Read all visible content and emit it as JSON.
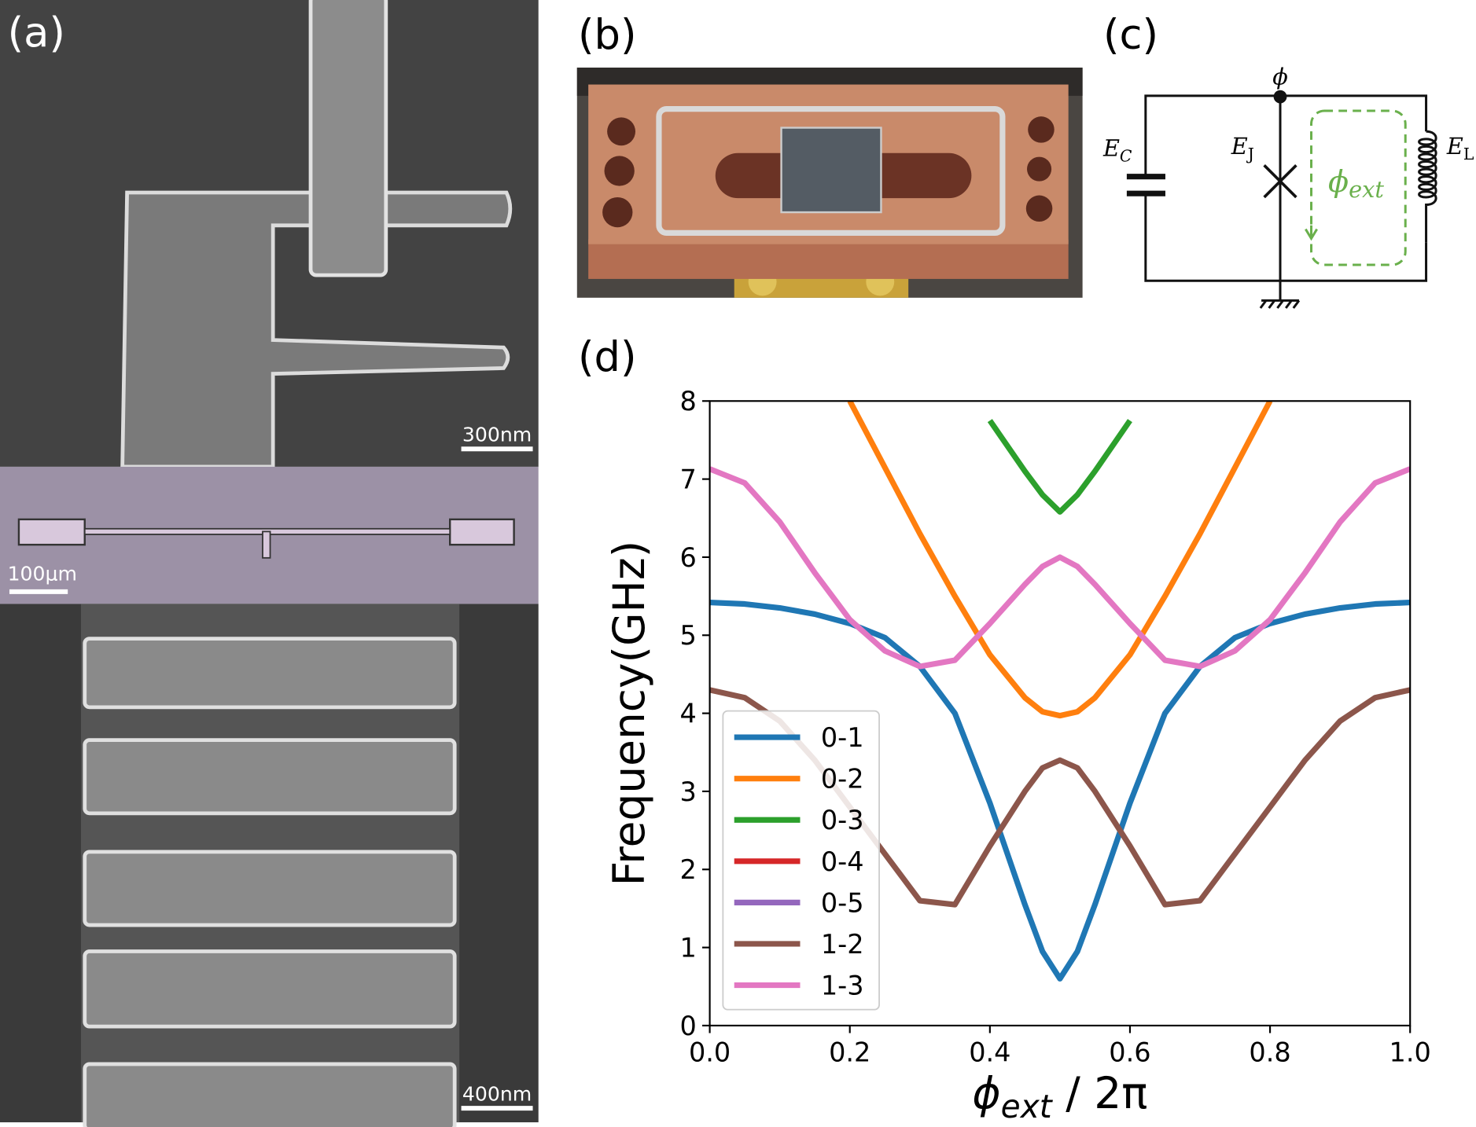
{
  "panels": {
    "a": {
      "label": "(a)",
      "scale_top": "300nm",
      "scale_mid": "100μm",
      "scale_bottom": "400nm"
    },
    "b": {
      "label": "(b)"
    },
    "c": {
      "label": "(c)",
      "node": "ϕ",
      "ec": {
        "main": "E",
        "sub": "C"
      },
      "ej": {
        "main": "E",
        "sub": "J"
      },
      "el": {
        "main": "E",
        "sub": "L"
      },
      "flux": {
        "main": "ϕ",
        "sub": "ext"
      }
    },
    "d": {
      "label": "(d)"
    }
  },
  "chart_data": {
    "type": "line",
    "y_label": "Frequency(GHz)",
    "x_label": {
      "symbol": "ϕ",
      "subscript": "ext",
      "rest": " / 2π"
    },
    "x": [
      0,
      0.05,
      0.1,
      0.15,
      0.2,
      0.25,
      0.3,
      0.35,
      0.4,
      0.45,
      0.475,
      0.5,
      0.525,
      0.55,
      0.6,
      0.65,
      0.7,
      0.75,
      0.8,
      0.85,
      0.9,
      0.95,
      1.0
    ],
    "series": [
      {
        "name": "0-1",
        "color": "#1f77b4",
        "values": [
          5.42,
          5.4,
          5.35,
          5.27,
          5.15,
          4.97,
          4.6,
          4.0,
          2.85,
          1.55,
          0.95,
          0.6,
          0.95,
          1.55,
          2.85,
          4.0,
          4.6,
          4.97,
          5.15,
          5.27,
          5.35,
          5.4,
          5.42
        ]
      },
      {
        "name": "0-2",
        "color": "#ff7f0e",
        "values": [
          null,
          null,
          null,
          null,
          8.0,
          7.15,
          6.3,
          5.5,
          4.75,
          4.2,
          4.02,
          3.97,
          4.02,
          4.2,
          4.75,
          5.5,
          6.3,
          7.15,
          8.0,
          null,
          null,
          null,
          null
        ]
      },
      {
        "name": "0-3",
        "color": "#2ca02c",
        "values": [
          null,
          null,
          null,
          null,
          null,
          null,
          null,
          null,
          7.75,
          7.1,
          6.8,
          6.58,
          6.8,
          7.1,
          7.75,
          null,
          null,
          null,
          null,
          null,
          null,
          null,
          null
        ]
      },
      {
        "name": "0-4",
        "color": "#d62728",
        "values": [
          null,
          null,
          null,
          null,
          null,
          null,
          null,
          null,
          null,
          null,
          null,
          null,
          null,
          null,
          null,
          null,
          null,
          null,
          null,
          null,
          null,
          null,
          null
        ]
      },
      {
        "name": "0-5",
        "color": "#9467bd",
        "values": [
          null,
          null,
          null,
          null,
          null,
          null,
          null,
          null,
          null,
          null,
          null,
          null,
          null,
          null,
          null,
          null,
          null,
          null,
          null,
          null,
          null,
          null,
          null
        ]
      },
      {
        "name": "1-2",
        "color": "#8c564b",
        "values": [
          4.3,
          4.2,
          3.9,
          3.4,
          2.8,
          2.2,
          1.6,
          1.55,
          2.3,
          3.0,
          3.3,
          3.4,
          3.3,
          3.0,
          2.3,
          1.55,
          1.6,
          2.2,
          2.8,
          3.4,
          3.9,
          4.2,
          4.3
        ]
      },
      {
        "name": "1-3",
        "color": "#e377c2",
        "values": [
          7.13,
          6.95,
          6.45,
          5.8,
          5.2,
          4.8,
          4.6,
          4.68,
          5.15,
          5.65,
          5.88,
          6.0,
          5.88,
          5.65,
          5.15,
          4.68,
          4.6,
          4.8,
          5.2,
          5.8,
          6.45,
          6.95,
          7.13
        ]
      }
    ],
    "xlim": [
      0,
      1
    ],
    "ylim": [
      0,
      8
    ],
    "xticks": [
      {
        "value": 0,
        "label": "0.0"
      },
      0.2,
      0.4,
      0.6,
      0.8,
      {
        "value": 1,
        "label": "1.0"
      }
    ],
    "yticks": [
      0,
      1,
      2,
      3,
      4,
      5,
      6,
      7,
      8
    ],
    "legend": "lower left",
    "grid": false
  }
}
